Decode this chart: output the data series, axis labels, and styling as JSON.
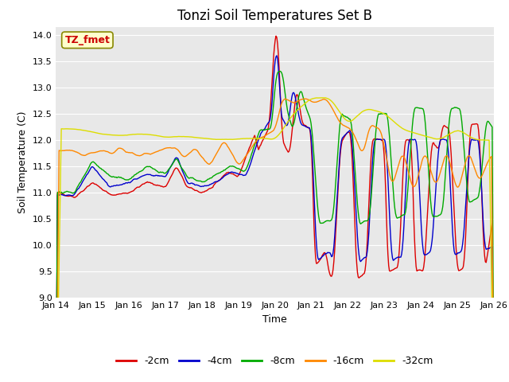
{
  "title": "Tonzi Soil Temperatures Set B",
  "xlabel": "Time",
  "ylabel": "Soil Temperature (C)",
  "ylim": [
    9.0,
    14.15
  ],
  "yticks": [
    9.0,
    9.5,
    10.0,
    10.5,
    11.0,
    11.5,
    12.0,
    12.5,
    13.0,
    13.5,
    14.0
  ],
  "x_tick_labels": [
    "Jan 14",
    "Jan 15",
    "Jan 16",
    "Jan 17",
    "Jan 18",
    "Jan 19",
    "Jan 20",
    "Jan 21",
    "Jan 22",
    "Jan 23",
    "Jan 24",
    "Jan 25",
    "Jan 26"
  ],
  "annotation_text": "TZ_fmet",
  "annotation_color": "#cc0000",
  "annotation_bg": "#ffffcc",
  "annotation_border": "#888800",
  "colors": {
    "-2cm": "#dd0000",
    "-4cm": "#0000cc",
    "-8cm": "#00aa00",
    "-16cm": "#ff8800",
    "-32cm": "#dddd00"
  },
  "legend_labels": [
    "-2cm",
    "-4cm",
    "-8cm",
    "-16cm",
    "-32cm"
  ],
  "fig_bg": "#ffffff",
  "plot_bg": "#e8e8e8",
  "grid_color": "#ffffff",
  "title_fontsize": 12,
  "label_fontsize": 9,
  "tick_fontsize": 8,
  "linewidth": 1.0
}
